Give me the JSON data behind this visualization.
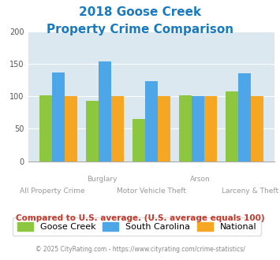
{
  "title_line1": "2018 Goose Creek",
  "title_line2": "Property Crime Comparison",
  "title_color": "#1a7abf",
  "categories": [
    "All Property Crime",
    "Burglary",
    "Motor Vehicle Theft",
    "Arson",
    "Larceny & Theft"
  ],
  "goose_creek": [
    101,
    93,
    65,
    101,
    107
  ],
  "south_carolina": [
    136,
    154,
    123,
    100,
    135
  ],
  "national": [
    100,
    100,
    100,
    100,
    100
  ],
  "colors": {
    "goose_creek": "#8dc63f",
    "south_carolina": "#4da6e8",
    "national": "#f5a623"
  },
  "ylim": [
    0,
    200
  ],
  "yticks": [
    0,
    50,
    100,
    150,
    200
  ],
  "plot_bg": "#dce8f0",
  "legend_labels": [
    "Goose Creek",
    "South Carolina",
    "National"
  ],
  "footer_text": "Compared to U.S. average. (U.S. average equals 100)",
  "footer_color": "#c0392b",
  "copyright_text": "© 2025 CityRating.com - https://www.cityrating.com/crime-statistics/",
  "copyright_color": "#888888",
  "label_color": "#999999",
  "row1_labels": [
    [
      1,
      "Burglary"
    ],
    [
      3,
      "Arson"
    ]
  ],
  "row2_labels": [
    [
      0,
      "All Property Crime"
    ],
    [
      2,
      "Motor Vehicle Theft"
    ],
    [
      4,
      "Larceny & Theft"
    ]
  ]
}
